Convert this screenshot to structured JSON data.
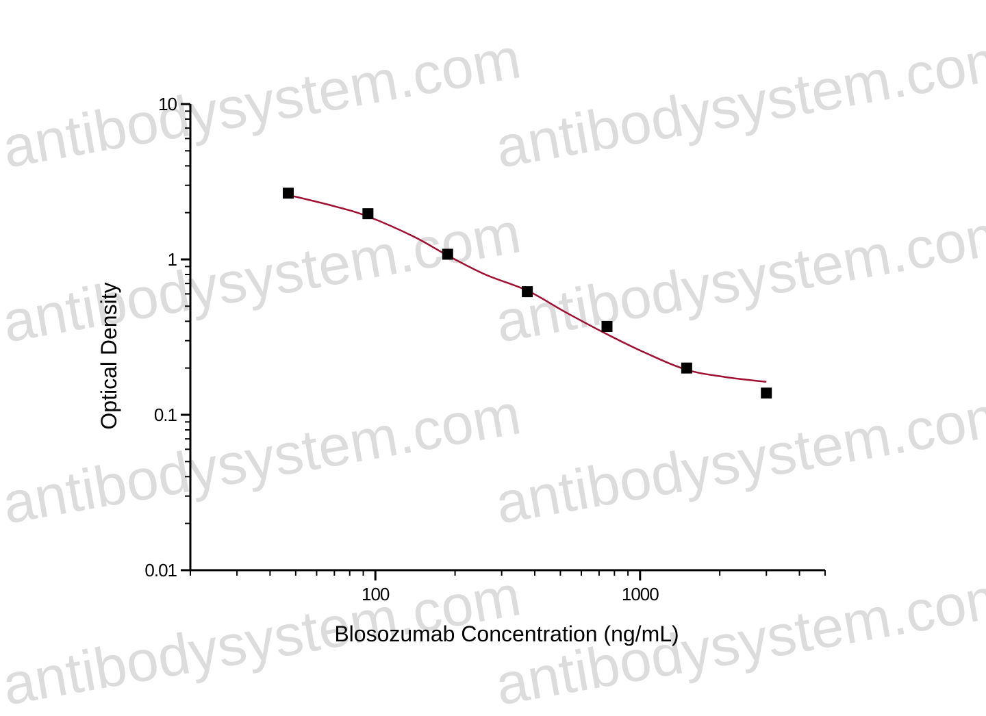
{
  "chart_data": {
    "type": "scatter",
    "xlabel": "Blosozumab Concentration (ng/mL)",
    "ylabel": "Optical Density",
    "watermark": "antibodysystem.com",
    "xscale": "log",
    "yscale": "log",
    "xlim": [
      20,
      5000
    ],
    "ylim": [
      0.01,
      10
    ],
    "xticks": [
      100,
      1000
    ],
    "xminorticks": [
      20,
      30,
      40,
      50,
      60,
      70,
      80,
      90,
      200,
      300,
      400,
      500,
      600,
      700,
      800,
      900,
      2000,
      3000,
      4000,
      5000
    ],
    "yticks": [
      0.01,
      0.1,
      1,
      10
    ],
    "yminorticks": [
      0.02,
      0.03,
      0.04,
      0.05,
      0.06,
      0.07,
      0.08,
      0.09,
      0.2,
      0.3,
      0.4,
      0.5,
      0.6,
      0.7,
      0.8,
      0.9,
      2,
      3,
      4,
      5,
      6,
      7,
      8,
      9
    ],
    "series": [
      {
        "kind": "points",
        "color": "#000000",
        "x": [
          46.875,
          93.75,
          187.5,
          375,
          750,
          1500,
          3000
        ],
        "values": [
          2.67,
          1.97,
          1.08,
          0.62,
          0.37,
          0.2,
          0.138
        ]
      },
      {
        "kind": "fit",
        "color": "#a01030",
        "x": [
          46.875,
          70,
          93.75,
          140,
          187.5,
          260,
          375,
          520,
          750,
          1050,
          1500,
          2100,
          3000
        ],
        "values": [
          2.6,
          2.2,
          1.89,
          1.4,
          1.06,
          0.8,
          0.63,
          0.46,
          0.33,
          0.25,
          0.195,
          0.175,
          0.163
        ]
      }
    ]
  }
}
